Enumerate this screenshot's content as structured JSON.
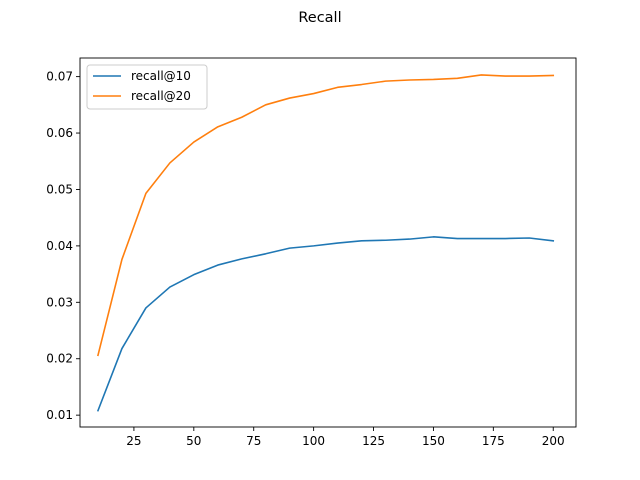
{
  "chart_data": {
    "type": "line",
    "title": "Recall",
    "xlabel": "",
    "ylabel": "",
    "xlim": [
      2.5,
      209.5
    ],
    "ylim": [
      0.0079,
      0.0733
    ],
    "xticks": [
      25,
      50,
      75,
      100,
      125,
      150,
      175,
      200
    ],
    "yticks": [
      0.01,
      0.02,
      0.03,
      0.04,
      0.05,
      0.06,
      0.07
    ],
    "xtick_labels": [
      "25",
      "50",
      "75",
      "100",
      "125",
      "150",
      "175",
      "200"
    ],
    "ytick_labels": [
      "0.01",
      "0.02",
      "0.03",
      "0.04",
      "0.05",
      "0.06",
      "0.07"
    ],
    "grid": false,
    "legend_position": "upper-left",
    "x": [
      10,
      20,
      30,
      40,
      50,
      60,
      70,
      80,
      90,
      100,
      110,
      120,
      130,
      140,
      150,
      160,
      170,
      180,
      190,
      200
    ],
    "series": [
      {
        "name": "recall@10",
        "color": "#1f77b4",
        "values": [
          0.0108,
          0.0218,
          0.029,
          0.0327,
          0.0349,
          0.0366,
          0.0377,
          0.0386,
          0.0396,
          0.04,
          0.0405,
          0.0409,
          0.041,
          0.0412,
          0.0416,
          0.0413,
          0.0413,
          0.0413,
          0.0414,
          0.0409
        ]
      },
      {
        "name": "recall@20",
        "color": "#ff7f0e",
        "values": [
          0.0206,
          0.0376,
          0.0493,
          0.0547,
          0.0584,
          0.0611,
          0.0628,
          0.065,
          0.0662,
          0.067,
          0.0681,
          0.0686,
          0.0692,
          0.0694,
          0.0695,
          0.0697,
          0.0703,
          0.0701,
          0.0701,
          0.0702
        ]
      }
    ]
  }
}
